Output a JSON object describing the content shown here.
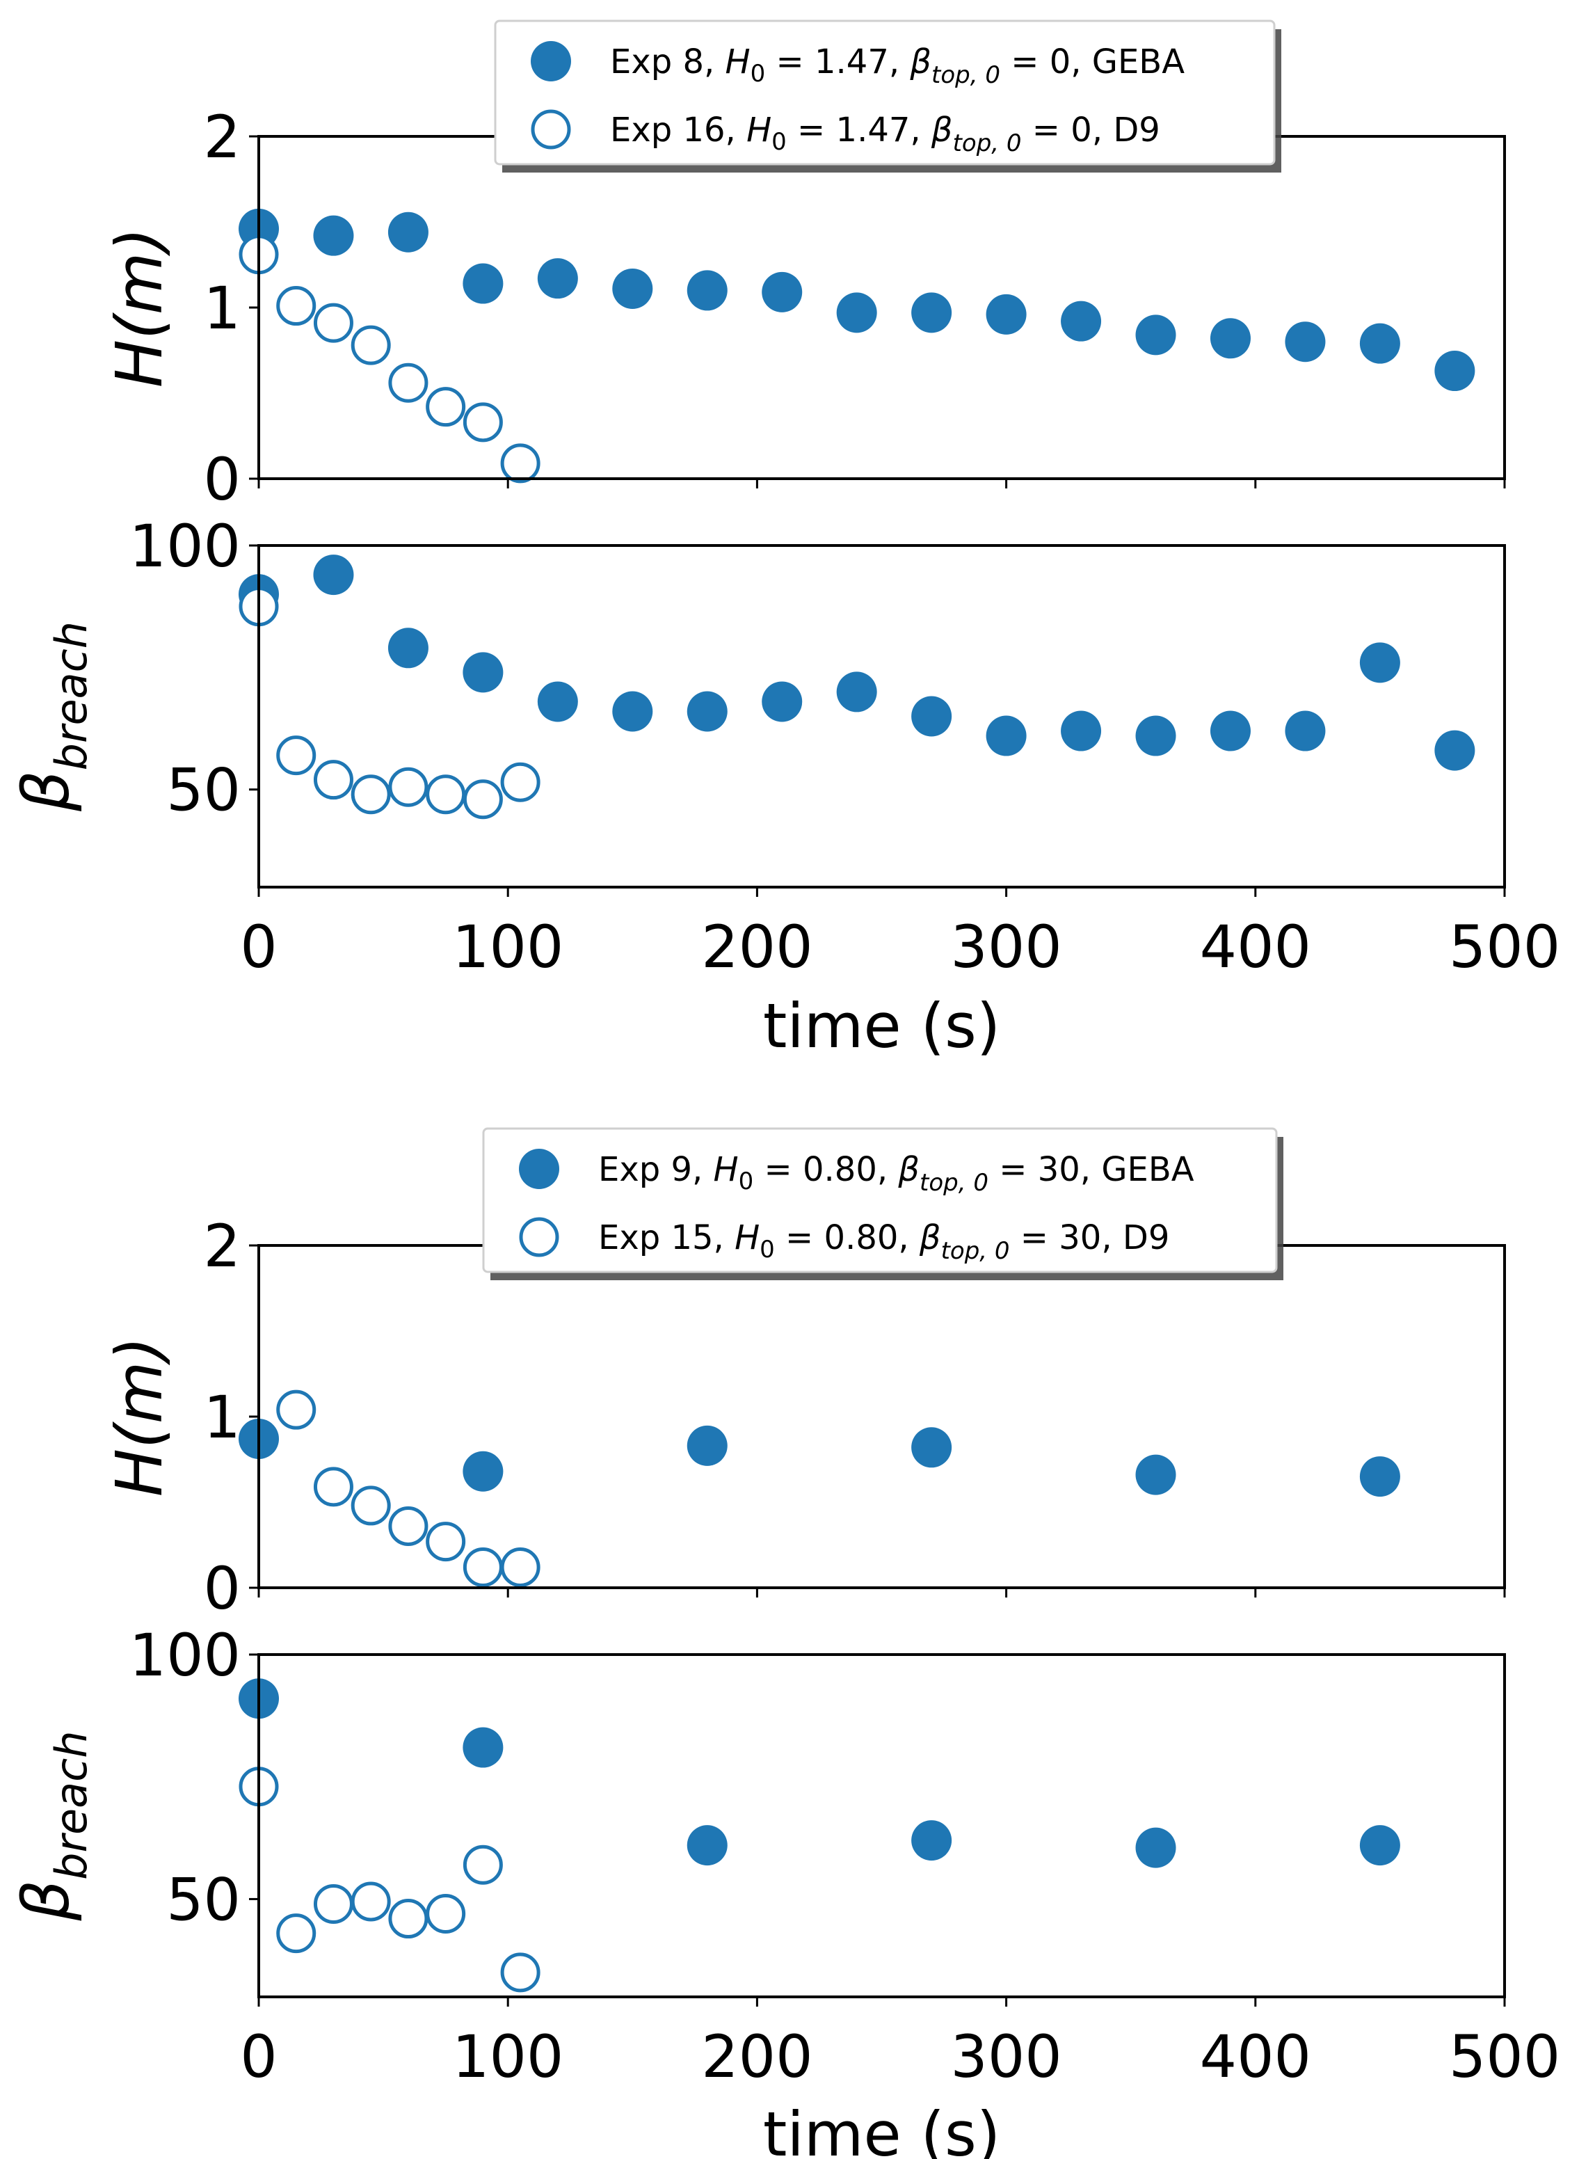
{
  "chart_data": [
    {
      "type": "scatter",
      "id": "top-pair",
      "xlabel": "time (s)",
      "xlim": [
        0,
        500
      ],
      "xticks": [
        0,
        100,
        200,
        300,
        400,
        500
      ],
      "legend": {
        "position": "top-center",
        "entries": [
          {
            "marker": "filled",
            "exp": "Exp 8",
            "h0": "1.47",
            "beta": "0",
            "model": "GEBA"
          },
          {
            "marker": "open",
            "exp": "Exp 16",
            "h0": "1.47",
            "beta": "0",
            "model": "D9"
          }
        ]
      },
      "panels": [
        {
          "ylabel": {
            "main": "H",
            "sub": "",
            "paren": "(m)"
          },
          "ylim": [
            0,
            2
          ],
          "yticks": [
            0,
            1,
            2
          ],
          "series": [
            {
              "name": "Exp 8 GEBA",
              "marker": "filled",
              "x": [
                0,
                30,
                60,
                90,
                120,
                150,
                180,
                210,
                240,
                270,
                300,
                330,
                360,
                390,
                420,
                450,
                480
              ],
              "y": [
                1.46,
                1.42,
                1.44,
                1.14,
                1.17,
                1.11,
                1.1,
                1.09,
                0.97,
                0.97,
                0.96,
                0.92,
                0.84,
                0.82,
                0.8,
                0.79,
                0.63
              ]
            },
            {
              "name": "Exp 16 D9",
              "marker": "open",
              "x": [
                0,
                15,
                30,
                45,
                60,
                75,
                90,
                105
              ],
              "y": [
                1.31,
                1.01,
                0.91,
                0.78,
                0.56,
                0.42,
                0.33,
                0.09
              ]
            }
          ]
        },
        {
          "ylabel": {
            "main": "β",
            "sub": "breach",
            "paren": ""
          },
          "ylim": [
            30,
            100
          ],
          "yticks": [
            50,
            100
          ],
          "series": [
            {
              "name": "Exp 8 GEBA",
              "marker": "filled",
              "x": [
                0,
                30,
                60,
                90,
                120,
                150,
                180,
                210,
                240,
                270,
                300,
                330,
                360,
                390,
                420,
                450,
                480
              ],
              "y": [
                90,
                94,
                79,
                74,
                68,
                66,
                66,
                68,
                70,
                65,
                61,
                62,
                61,
                62,
                62,
                76,
                58
              ]
            },
            {
              "name": "Exp 16 D9",
              "marker": "open",
              "x": [
                0,
                15,
                30,
                45,
                60,
                75,
                90,
                105
              ],
              "y": [
                87.5,
                57,
                52,
                49,
                50.5,
                49,
                48,
                51.5
              ]
            }
          ]
        }
      ]
    },
    {
      "type": "scatter",
      "id": "bottom-pair",
      "xlabel": "time (s)",
      "xlim": [
        0,
        500
      ],
      "xticks": [
        0,
        100,
        200,
        300,
        400,
        500
      ],
      "legend": {
        "position": "top-center",
        "entries": [
          {
            "marker": "filled",
            "exp": "Exp 9",
            "h0": "0.80",
            "beta": "30",
            "model": "GEBA"
          },
          {
            "marker": "open",
            "exp": "Exp 15",
            "h0": "0.80",
            "beta": "30",
            "model": "D9"
          }
        ]
      },
      "panels": [
        {
          "ylabel": {
            "main": "H",
            "sub": "",
            "paren": "(m)"
          },
          "ylim": [
            0,
            2
          ],
          "yticks": [
            0,
            1,
            2
          ],
          "series": [
            {
              "name": "Exp 9 GEBA",
              "marker": "filled",
              "x": [
                0,
                90,
                180,
                270,
                360,
                450
              ],
              "y": [
                0.87,
                0.68,
                0.83,
                0.82,
                0.66,
                0.65
              ]
            },
            {
              "name": "Exp 15 D9",
              "marker": "open",
              "x": [
                15,
                30,
                45,
                60,
                75,
                90,
                105
              ],
              "y": [
                1.04,
                0.59,
                0.48,
                0.36,
                0.27,
                0.12,
                0.12
              ]
            }
          ]
        },
        {
          "ylabel": {
            "main": "β",
            "sub": "breach",
            "paren": ""
          },
          "ylim": [
            30,
            100
          ],
          "yticks": [
            50,
            100
          ],
          "series": [
            {
              "name": "Exp 9 GEBA",
              "marker": "filled",
              "x": [
                0,
                90,
                180,
                270,
                360,
                450
              ],
              "y": [
                91,
                81,
                61,
                62,
                60.5,
                61
              ]
            },
            {
              "name": "Exp 15 D9",
              "marker": "open",
              "x": [
                0,
                15,
                30,
                45,
                60,
                75,
                90,
                105
              ],
              "y": [
                73,
                43,
                49,
                49.5,
                46,
                47,
                57,
                35
              ]
            }
          ]
        }
      ]
    }
  ]
}
